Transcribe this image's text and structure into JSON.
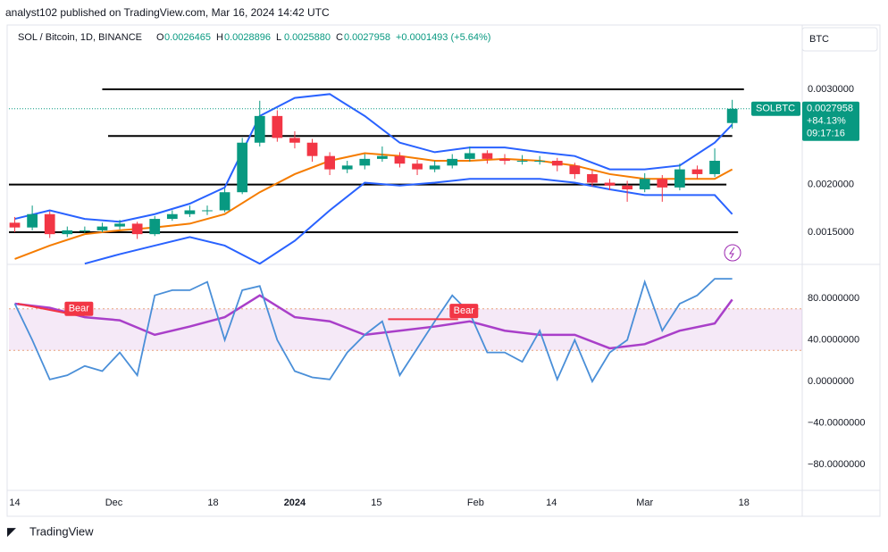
{
  "header": {
    "published": "analyst102 published on TradingView.com, Mar 16, 2024 14:42 UTC",
    "symbol": "SOL / Bitcoin, 1D, BINANCE",
    "ohlc": [
      {
        "label": "O",
        "value": "0.0026465"
      },
      {
        "label": "H",
        "value": "0.0028896"
      },
      {
        "label": "L",
        "value": "0.0025880"
      },
      {
        "label": "C",
        "value": "0.0027958"
      }
    ],
    "change": "+0.0001493 (+5.64%)",
    "currency": "BTC"
  },
  "price_label": {
    "symbol": "SOLBTC",
    "price": "0.0027958",
    "change": "+84.13%",
    "countdown": "09:17:16",
    "value": 0.0027958
  },
  "footer": {
    "brand": "TradingView"
  },
  "chart_data": [
    {
      "type": "candlestick",
      "up_color": "#089981",
      "down_color": "#f23645",
      "xlim": [
        -1,
        135
      ],
      "ylim": [
        0.001172,
        0.003675
      ],
      "yticks": [
        {
          "value": 0.003,
          "label": "0.0030000"
        },
        {
          "value": 0.002,
          "label": "0.0020000"
        },
        {
          "value": 0.0015,
          "label": "0.0015000"
        }
      ],
      "xticks": [
        {
          "value": 0,
          "label": "14"
        },
        {
          "value": 17,
          "label": "Dec"
        },
        {
          "value": 34,
          "label": "18"
        },
        {
          "value": 48,
          "label": "2024"
        },
        {
          "value": 62,
          "label": "15"
        },
        {
          "value": 79,
          "label": "Feb"
        },
        {
          "value": 92,
          "label": "14"
        },
        {
          "value": 108,
          "label": "Mar"
        },
        {
          "value": 125,
          "label": "18"
        }
      ],
      "x": [
        0,
        3,
        6,
        9,
        12,
        15,
        18,
        21,
        24,
        27,
        30,
        33,
        36,
        39,
        42,
        45,
        48,
        51,
        54,
        57,
        60,
        63,
        66,
        69,
        72,
        75,
        78,
        81,
        84,
        87,
        90,
        93,
        96,
        99,
        102,
        105,
        108,
        111,
        114,
        117,
        120,
        123
      ],
      "ohlc": [
        [
          0.0016,
          0.00166,
          0.0015,
          0.00155
        ],
        [
          0.00155,
          0.00178,
          0.00152,
          0.00169
        ],
        [
          0.00169,
          0.00172,
          0.00144,
          0.00148
        ],
        [
          0.00148,
          0.00156,
          0.00145,
          0.00152
        ],
        [
          0.00152,
          0.00156,
          0.00149,
          0.00152
        ],
        [
          0.00152,
          0.0016,
          0.0015,
          0.00156
        ],
        [
          0.00156,
          0.00163,
          0.00153,
          0.00159
        ],
        [
          0.00159,
          0.00161,
          0.00143,
          0.00148
        ],
        [
          0.00148,
          0.00167,
          0.00146,
          0.00164
        ],
        [
          0.00164,
          0.00173,
          0.00162,
          0.00169
        ],
        [
          0.00169,
          0.00178,
          0.00166,
          0.00173
        ],
        [
          0.00173,
          0.00178,
          0.00168,
          0.00173
        ],
        [
          0.00173,
          0.00196,
          0.00171,
          0.00192
        ],
        [
          0.00192,
          0.00249,
          0.0019,
          0.00244
        ],
        [
          0.00244,
          0.00288,
          0.0024,
          0.00272
        ],
        [
          0.00272,
          0.00278,
          0.00245,
          0.00249
        ],
        [
          0.00249,
          0.00256,
          0.00238,
          0.00244
        ],
        [
          0.00244,
          0.00248,
          0.00224,
          0.0023
        ],
        [
          0.0023,
          0.00234,
          0.0021,
          0.00216
        ],
        [
          0.00216,
          0.00225,
          0.00212,
          0.0022
        ],
        [
          0.0022,
          0.00232,
          0.00216,
          0.00227
        ],
        [
          0.00227,
          0.0024,
          0.00224,
          0.0023
        ],
        [
          0.0023,
          0.00234,
          0.00218,
          0.00222
        ],
        [
          0.00222,
          0.00226,
          0.0021,
          0.00216
        ],
        [
          0.00216,
          0.00225,
          0.00213,
          0.0022
        ],
        [
          0.0022,
          0.00232,
          0.00217,
          0.00227
        ],
        [
          0.00227,
          0.0024,
          0.00224,
          0.00233
        ],
        [
          0.00233,
          0.00236,
          0.00222,
          0.00227
        ],
        [
          0.00227,
          0.00232,
          0.00221,
          0.00225
        ],
        [
          0.00225,
          0.00231,
          0.00221,
          0.00225
        ],
        [
          0.00225,
          0.0023,
          0.00221,
          0.00225
        ],
        [
          0.00225,
          0.00228,
          0.00214,
          0.0022
        ],
        [
          0.0022,
          0.00223,
          0.00206,
          0.00211
        ],
        [
          0.00211,
          0.00215,
          0.00198,
          0.00202
        ],
        [
          0.00202,
          0.00206,
          0.00194,
          0.00199
        ],
        [
          0.00199,
          0.00204,
          0.00182,
          0.00195
        ],
        [
          0.00195,
          0.00212,
          0.00192,
          0.00206
        ],
        [
          0.00206,
          0.0021,
          0.00182,
          0.00197
        ],
        [
          0.00197,
          0.00222,
          0.00194,
          0.00216
        ],
        [
          0.00216,
          0.0022,
          0.00206,
          0.00211
        ],
        [
          0.00211,
          0.00238,
          0.00208,
          0.00225
        ],
        [
          0.0026465,
          0.0028896,
          0.002588,
          0.0027958
        ]
      ],
      "bollinger": {
        "x": [
          0,
          6,
          12,
          18,
          24,
          30,
          36,
          42,
          48,
          54,
          60,
          66,
          72,
          78,
          84,
          90,
          96,
          102,
          108,
          114,
          120,
          123
        ],
        "band_color": "#2962ff",
        "middle_color": "#f57c00",
        "upper": [
          0.00164,
          0.00173,
          0.00164,
          0.00161,
          0.00169,
          0.0018,
          0.00197,
          0.00272,
          0.00291,
          0.00295,
          0.00272,
          0.00244,
          0.00234,
          0.00239,
          0.00239,
          0.00234,
          0.0023,
          0.00216,
          0.00216,
          0.0022,
          0.00244,
          0.00263
        ],
        "middle": [
          0.00122,
          0.00136,
          0.00148,
          0.00152,
          0.00155,
          0.00159,
          0.00169,
          0.00192,
          0.00211,
          0.00225,
          0.00233,
          0.0023,
          0.00225,
          0.00225,
          0.00227,
          0.00225,
          0.0022,
          0.00211,
          0.00206,
          0.00206,
          0.00206,
          0.00216
        ],
        "lower": [
          null,
          null,
          0.00117,
          0.00127,
          0.00136,
          0.00145,
          0.00136,
          0.00117,
          0.00141,
          0.00173,
          0.00202,
          0.00199,
          0.00202,
          0.00206,
          0.00206,
          0.00206,
          0.00202,
          0.00195,
          0.00189,
          0.00189,
          0.00189,
          0.00169
        ]
      },
      "levels": [
        {
          "value": 0.003,
          "x": [
            15,
            125
          ]
        },
        {
          "value": 0.00251,
          "x": [
            16,
            123
          ]
        },
        {
          "value": 0.002,
          "x": [
            -1,
            122
          ]
        },
        {
          "value": 0.0015,
          "x": [
            -1,
            124
          ]
        }
      ]
    },
    {
      "type": "line",
      "xlim": [
        -1,
        135
      ],
      "ylim": [
        -104,
        112
      ],
      "band": [
        30,
        70
      ],
      "yticks": [
        {
          "value": 80,
          "label": "80.0000000"
        },
        {
          "value": 40,
          "label": "40.0000000"
        },
        {
          "value": 0,
          "label": "0.0000000"
        },
        {
          "value": -40,
          "label": "−40.0000000"
        },
        {
          "value": -80,
          "label": "−80.0000000"
        }
      ],
      "series": [
        {
          "color": "#a93fc9",
          "x": [
            0,
            6,
            12,
            18,
            24,
            30,
            36,
            42,
            48,
            54,
            60,
            66,
            72,
            78,
            84,
            90,
            96,
            102,
            108,
            114,
            120,
            123
          ],
          "values": [
            75,
            71,
            62,
            59,
            45,
            53,
            62,
            83,
            62,
            58,
            45,
            49,
            53,
            58,
            49,
            45,
            45,
            32,
            36,
            49,
            56,
            79
          ]
        },
        {
          "color": "#4a8fd8",
          "x": [
            0,
            3,
            6,
            9,
            12,
            15,
            18,
            21,
            24,
            27,
            30,
            33,
            36,
            39,
            42,
            45,
            48,
            51,
            54,
            57,
            60,
            63,
            66,
            69,
            72,
            75,
            78,
            81,
            84,
            87,
            90,
            93,
            96,
            99,
            102,
            105,
            108,
            111,
            114,
            117,
            120,
            123
          ],
          "values": [
            75,
            40,
            2,
            6,
            15,
            10,
            28,
            6,
            83,
            88,
            88,
            96,
            40,
            88,
            92,
            40,
            10,
            4,
            2,
            28,
            45,
            58,
            6,
            32,
            58,
            83,
            66,
            28,
            28,
            19,
            49,
            2,
            40,
            0,
            28,
            40,
            96,
            49,
            75,
            83,
            99,
            99
          ]
        }
      ],
      "annotations": [
        {
          "text": "Bear",
          "x": 11,
          "y": 70,
          "line": [
            [
              0.5,
              75
            ],
            [
              9.7,
              65
            ]
          ]
        },
        {
          "text": "Bear",
          "x": 77,
          "y": 68,
          "line": [
            [
              64,
              60
            ],
            [
              76,
              60
            ]
          ]
        }
      ]
    }
  ]
}
